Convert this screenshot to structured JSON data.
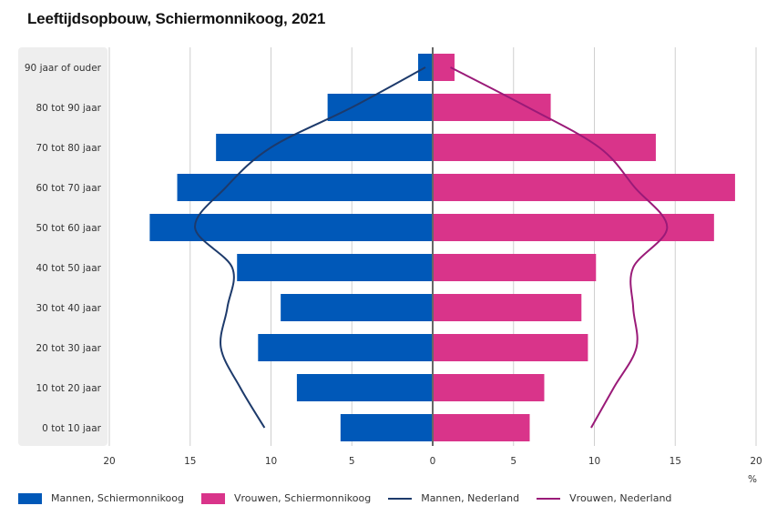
{
  "chart_data": {
    "type": "bar",
    "subtype": "population-pyramid",
    "title": "Leeftijdsopbouw, Schiermonnikoog, 2021",
    "xlabel": "%",
    "xlim": [
      -20,
      20
    ],
    "x_ticks": [
      -20,
      -15,
      -10,
      -5,
      0,
      5,
      10,
      15,
      20
    ],
    "x_tick_labels": [
      "20",
      "15",
      "10",
      "5",
      "0",
      "5",
      "10",
      "15",
      "20"
    ],
    "grid": true,
    "legend_position": "bottom-left",
    "categories": [
      "90 jaar of ouder",
      "80 tot 90 jaar",
      "70 tot 80 jaar",
      "60 tot 70 jaar",
      "50 tot 60 jaar",
      "40 tot 50 jaar",
      "30 tot 40 jaar",
      "20 tot 30 jaar",
      "10 tot 20 jaar",
      "0 tot 10 jaar"
    ],
    "series": [
      {
        "name": "Mannen, Schiermonnikoog",
        "kind": "bar",
        "side": "left",
        "color": "#0058b8",
        "values": [
          0.9,
          6.5,
          13.4,
          15.8,
          17.5,
          12.1,
          9.4,
          10.8,
          8.4,
          5.7
        ]
      },
      {
        "name": "Vrouwen, Schiermonnikoog",
        "kind": "bar",
        "side": "right",
        "color": "#d9348a",
        "values": [
          1.35,
          7.3,
          13.8,
          18.7,
          17.4,
          10.1,
          9.2,
          9.6,
          6.9,
          6.0
        ]
      },
      {
        "name": "Mannen, Nederland",
        "kind": "line",
        "side": "left",
        "color": "#1d3a6b",
        "values": [
          0.45,
          5.0,
          10.0,
          12.8,
          14.7,
          12.4,
          12.7,
          13.1,
          11.9,
          10.4
        ]
      },
      {
        "name": "Vrouwen, Nederland",
        "kind": "line",
        "side": "right",
        "color": "#9a1a78",
        "values": [
          1.1,
          5.9,
          10.3,
          12.5,
          14.5,
          12.4,
          12.4,
          12.6,
          11.2,
          9.8
        ]
      }
    ]
  }
}
